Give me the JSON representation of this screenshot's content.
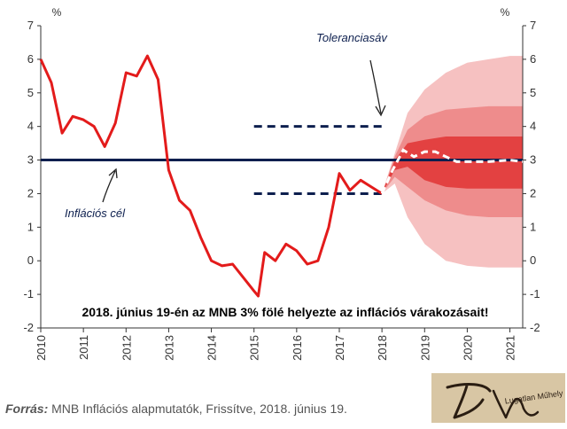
{
  "colors": {
    "actual": "#e31b1b",
    "target": "#0d1f4e",
    "band": "#0d1f4e",
    "fan_outer": "#f6c1c1",
    "fan_mid": "#ee8c8c",
    "fan_inner": "#e34141",
    "axis": "#333333"
  },
  "chart_data": {
    "type": "line",
    "x_label_unit_left": "%",
    "x_label_unit_right": "%",
    "ylim": [
      -2,
      7
    ],
    "y_ticks": [
      "-2",
      "-1",
      "0",
      "1",
      "2",
      "3",
      "4",
      "5",
      "6",
      "7"
    ],
    "x_ticks": [
      "2010",
      "2011",
      "2012",
      "2013",
      "2014",
      "2015",
      "2016",
      "2017",
      "2018",
      "2019",
      "2020",
      "2021"
    ],
    "xlim": [
      2010,
      2021.3
    ],
    "series": [
      {
        "kind": "actual",
        "points": [
          [
            2010.0,
            6.0
          ],
          [
            2010.25,
            5.3
          ],
          [
            2010.5,
            3.8
          ],
          [
            2010.75,
            4.3
          ],
          [
            2011.0,
            4.2
          ],
          [
            2011.25,
            4.0
          ],
          [
            2011.5,
            3.4
          ],
          [
            2011.75,
            4.1
          ],
          [
            2012.0,
            5.6
          ],
          [
            2012.25,
            5.5
          ],
          [
            2012.5,
            6.1
          ],
          [
            2012.75,
            5.4
          ],
          [
            2013.0,
            2.7
          ],
          [
            2013.25,
            1.8
          ],
          [
            2013.5,
            1.5
          ],
          [
            2013.75,
            0.7
          ],
          [
            2014.0,
            0.0
          ],
          [
            2014.25,
            -0.15
          ],
          [
            2014.5,
            -0.1
          ],
          [
            2014.75,
            -0.5
          ],
          [
            2015.0,
            -0.9
          ],
          [
            2015.1,
            -1.05
          ],
          [
            2015.25,
            0.25
          ],
          [
            2015.5,
            0.0
          ],
          [
            2015.75,
            0.5
          ],
          [
            2016.0,
            0.3
          ],
          [
            2016.25,
            -0.1
          ],
          [
            2016.5,
            0.0
          ],
          [
            2016.75,
            1.0
          ],
          [
            2017.0,
            2.6
          ],
          [
            2017.25,
            2.1
          ],
          [
            2017.5,
            2.4
          ],
          [
            2017.75,
            2.2
          ],
          [
            2018.0,
            2.0
          ]
        ]
      },
      {
        "kind": "forecast",
        "points": [
          [
            2018.0,
            2.0
          ],
          [
            2018.25,
            2.7
          ],
          [
            2018.5,
            3.3
          ],
          [
            2018.75,
            3.1
          ],
          [
            2019.0,
            3.25
          ],
          [
            2019.25,
            3.25
          ],
          [
            2019.5,
            3.1
          ],
          [
            2019.75,
            2.95
          ],
          [
            2020.0,
            2.95
          ],
          [
            2020.5,
            2.95
          ],
          [
            2021.0,
            3.0
          ],
          [
            2021.3,
            2.95
          ]
        ]
      }
    ],
    "target": 3,
    "tolerance_band": [
      2,
      4
    ],
    "tolerance_band_x": [
      2015.0,
      2018.0
    ],
    "fan": {
      "x": [
        2018.0,
        2018.3,
        2018.6,
        2019.0,
        2019.5,
        2020.0,
        2020.5,
        2021.0,
        2021.3
      ],
      "outer_lo": [
        2.0,
        2.3,
        1.3,
        0.5,
        0.0,
        -0.15,
        -0.2,
        -0.2,
        -0.2
      ],
      "outer_hi": [
        2.0,
        3.2,
        4.4,
        5.1,
        5.6,
        5.9,
        6.0,
        6.1,
        6.1
      ],
      "mid_lo": [
        2.0,
        2.5,
        2.2,
        1.8,
        1.5,
        1.35,
        1.3,
        1.3,
        1.3
      ],
      "mid_hi": [
        2.0,
        3.1,
        3.9,
        4.3,
        4.5,
        4.55,
        4.6,
        4.6,
        4.6
      ],
      "inner_lo": [
        2.0,
        2.7,
        2.8,
        2.4,
        2.2,
        2.15,
        2.15,
        2.15,
        2.15
      ],
      "inner_hi": [
        2.0,
        3.0,
        3.5,
        3.6,
        3.7,
        3.7,
        3.7,
        3.7,
        3.7
      ]
    },
    "annotations": {
      "tolerance": "Toleranciasáv",
      "target": "Inflációs cél",
      "headline": "2018. június 19-én az MNB 3% fölé helyezte az inflációs várakozásait!"
    },
    "grid": false
  },
  "source": {
    "label": "Forrás:",
    "text": " MNB Inflációs alapmutatók, Frissítve, 2018. június 19."
  },
  "logo": {
    "text": "Lugatlan Műhely"
  }
}
